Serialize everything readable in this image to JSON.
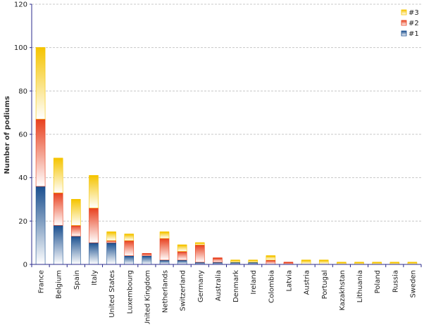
{
  "chart_data": {
    "type": "bar",
    "stacked": true,
    "ylabel": "Number of podiums",
    "ylim": [
      0,
      120
    ],
    "yticks": [
      0,
      20,
      40,
      60,
      80,
      100,
      120
    ],
    "grid": true,
    "legend_position": "top-right",
    "categories": [
      "France",
      "Belgium",
      "Spain",
      "Italy",
      "United States",
      "Luxembourg",
      "United Kingdom",
      "Netherlands",
      "Switzerland",
      "Germany",
      "Australia",
      "Denmark",
      "Ireland",
      "Colombia",
      "Latvia",
      "Austria",
      "Portugal",
      "Kazakhstan",
      "Lithuania",
      "Poland",
      "Russia",
      "Sweden"
    ],
    "series": [
      {
        "name": "#1",
        "color": "#1a4f8f",
        "values": [
          36,
          18,
          13,
          10,
          10,
          4,
          4,
          2,
          2,
          1,
          1,
          1,
          1,
          0,
          0,
          0,
          0,
          0,
          0,
          0,
          0,
          0
        ]
      },
      {
        "name": "#2",
        "color": "#e8401e",
        "values": [
          31,
          15,
          5,
          16,
          1,
          7,
          1,
          10,
          4,
          8,
          2,
          0,
          0,
          2,
          1,
          0,
          0,
          0,
          0,
          0,
          0,
          0
        ]
      },
      {
        "name": "#3",
        "color": "#f5c400",
        "values": [
          33,
          16,
          12,
          15,
          4,
          3,
          0,
          3,
          3,
          1,
          0,
          1,
          1,
          2,
          0,
          2,
          2,
          1,
          1,
          1,
          1,
          1
        ]
      }
    ]
  }
}
